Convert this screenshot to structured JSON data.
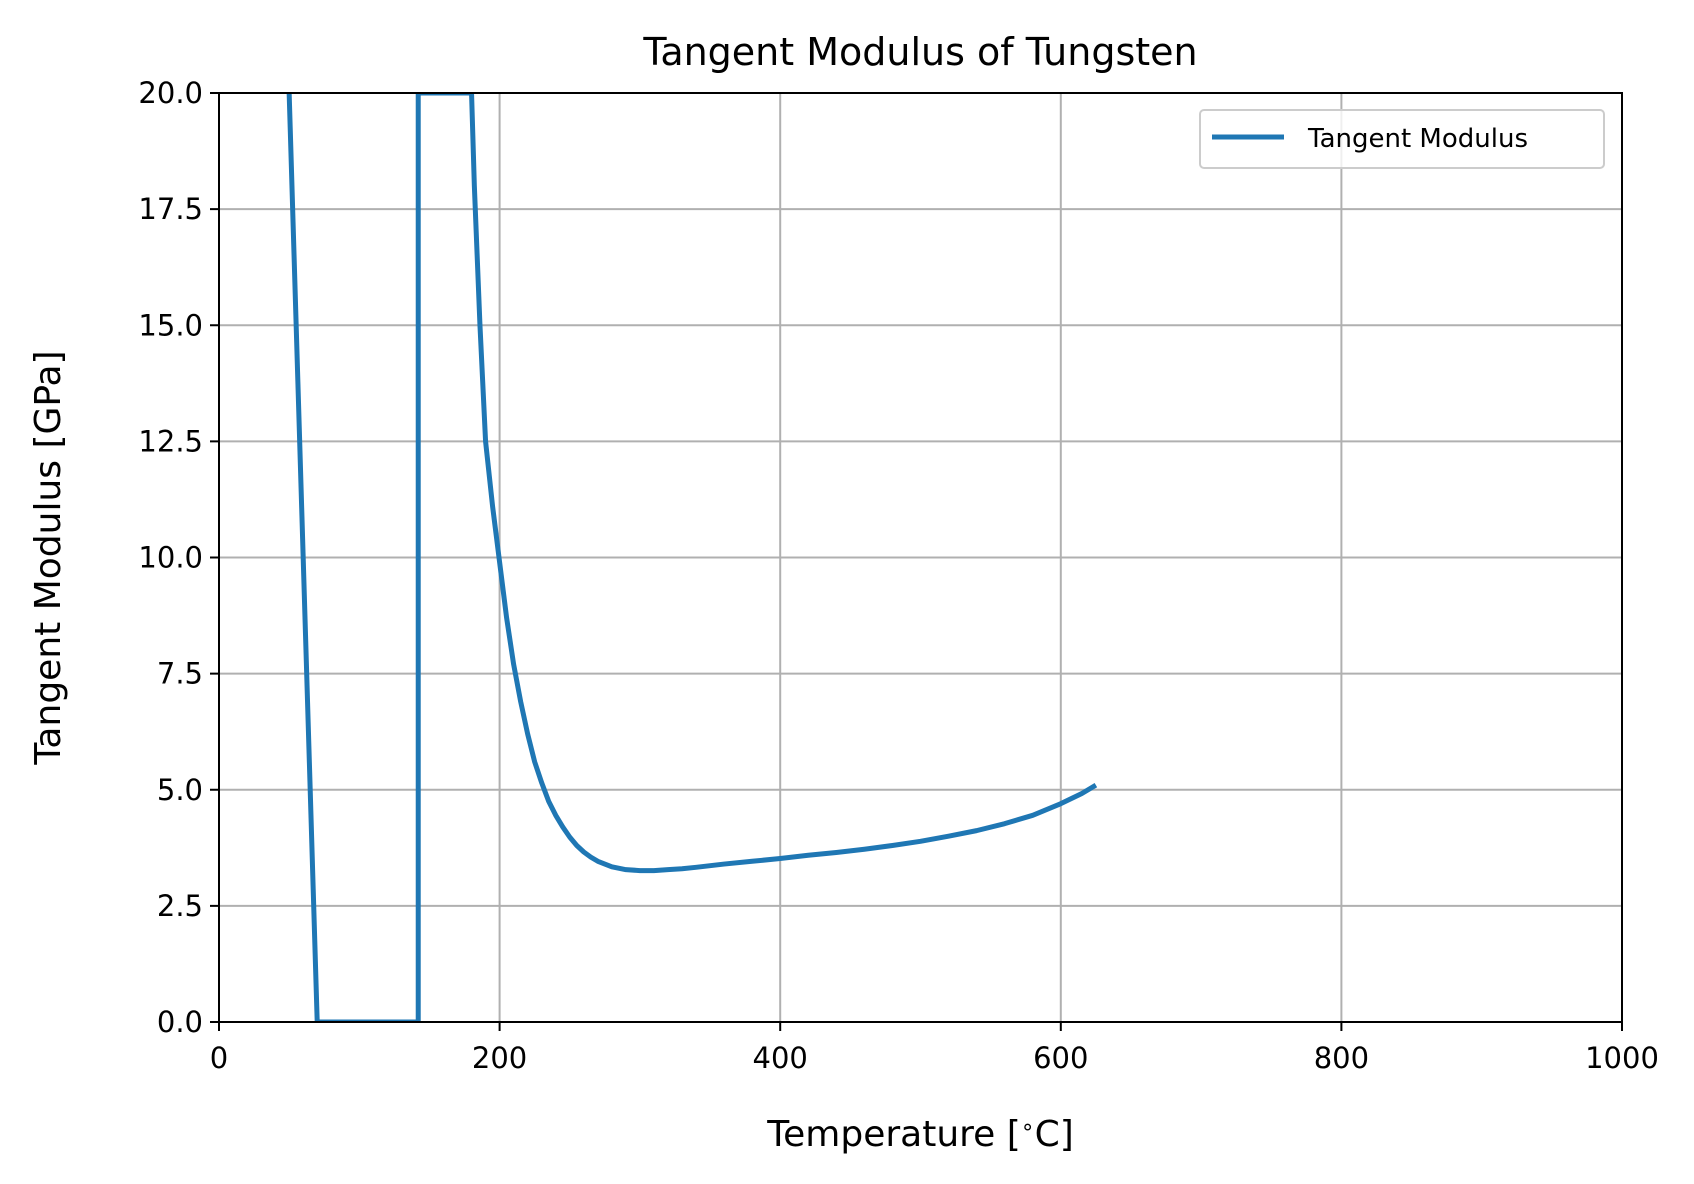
{
  "chart_data": {
    "type": "line",
    "title": "Tangent Modulus of Tungsten",
    "xlabel": "Temperature [$^\\circ$C]",
    "xlabel_parts": [
      "Temperature [",
      "∘",
      "C]"
    ],
    "ylabel": "Tangent Modulus [GPa]",
    "xlim": [
      0,
      1000
    ],
    "ylim": [
      0,
      20
    ],
    "xticks": [
      0,
      200,
      400,
      600,
      800,
      1000
    ],
    "xtick_labels": [
      "0",
      "200",
      "400",
      "600",
      "800",
      "1000"
    ],
    "yticks": [
      0,
      2.5,
      5,
      7.5,
      10,
      12.5,
      15,
      17.5,
      20
    ],
    "ytick_labels": [
      "0.0",
      "2.5",
      "5.0",
      "7.5",
      "10.0",
      "12.5",
      "15.0",
      "17.5",
      "20.0"
    ],
    "grid": true,
    "legend_position": "top-right",
    "series": [
      {
        "name": "Tangent Modulus",
        "color": "#1f77b4",
        "x": [
          50,
          70,
          142,
          142,
          180,
          182,
          186,
          190,
          195,
          200,
          205,
          210,
          215,
          220,
          225,
          230,
          235,
          240,
          245,
          250,
          255,
          260,
          265,
          270,
          280,
          290,
          300,
          310,
          320,
          330,
          340,
          360,
          380,
          400,
          420,
          440,
          460,
          480,
          500,
          520,
          540,
          560,
          580,
          600,
          615,
          625
        ],
        "y": [
          20,
          0,
          0,
          20,
          20,
          18.0,
          15.0,
          12.5,
          11.1,
          9.9,
          8.7,
          7.7,
          6.9,
          6.2,
          5.6,
          5.15,
          4.75,
          4.45,
          4.2,
          3.98,
          3.8,
          3.66,
          3.55,
          3.46,
          3.34,
          3.28,
          3.26,
          3.26,
          3.28,
          3.3,
          3.33,
          3.4,
          3.46,
          3.52,
          3.59,
          3.65,
          3.72,
          3.8,
          3.89,
          4.0,
          4.12,
          4.27,
          4.45,
          4.7,
          4.92,
          5.1
        ]
      }
    ]
  }
}
